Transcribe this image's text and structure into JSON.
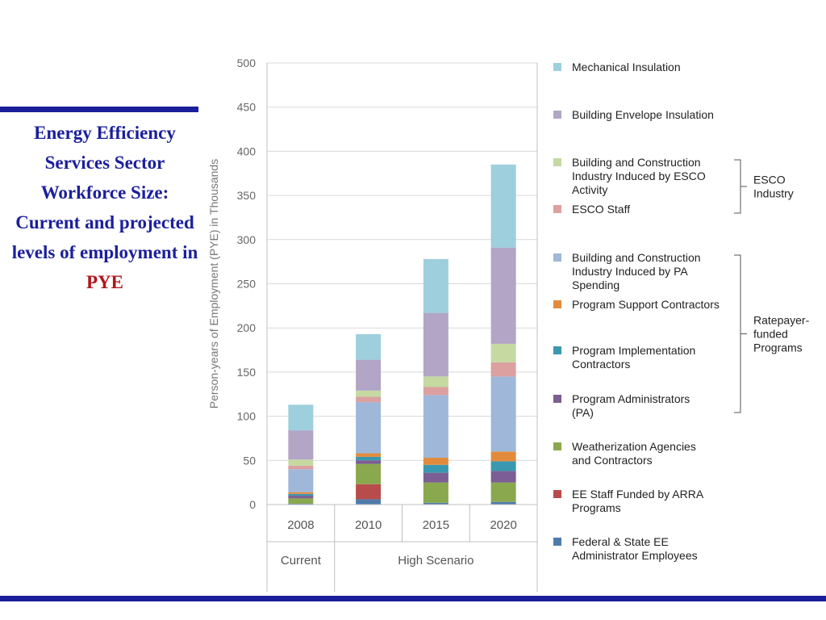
{
  "slide": {
    "title_main": "Energy Efficiency Services Sector Workforce Size: Current and projected levels of employment in",
    "title_accent": "PYE"
  },
  "colors": {
    "brand_blue": "#1b1f9a",
    "accent_red": "#b3141c"
  },
  "chart_data": {
    "type": "bar",
    "stacked": true,
    "ylabel": "Person-years of Employment (PYE) in Thousands",
    "ylim": [
      0,
      500
    ],
    "yticks": [
      0,
      50,
      100,
      150,
      200,
      250,
      300,
      350,
      400,
      450,
      500
    ],
    "grid": true,
    "legend_position": "right",
    "categories": [
      "2008",
      "2010",
      "2015",
      "2020"
    ],
    "category_groups": [
      {
        "label": "Current",
        "categories": [
          "2008"
        ]
      },
      {
        "label": "High Scenario",
        "categories": [
          "2010",
          "2015",
          "2020"
        ]
      }
    ],
    "series": [
      {
        "name": "Federal & State EE Administrator Employees",
        "color": "#4e7bac",
        "values": [
          1,
          6,
          2,
          3
        ]
      },
      {
        "name": "EE Staff Funded by ARRA Programs",
        "color": "#b84c4a",
        "values": [
          0,
          17,
          0,
          0
        ]
      },
      {
        "name": "Weatherization Agencies and Contractors",
        "color": "#8aa84e",
        "values": [
          6,
          23,
          23,
          22
        ]
      },
      {
        "name": "Program Administrators (PA)",
        "color": "#7b5e93",
        "values": [
          3,
          4,
          11,
          13
        ]
      },
      {
        "name": "Program Implementation Contractors",
        "color": "#3a98b0",
        "values": [
          2,
          4,
          9,
          11
        ]
      },
      {
        "name": "Program Support Contractors",
        "color": "#e38b3d",
        "values": [
          2,
          4,
          8,
          11
        ]
      },
      {
        "name": "Building and Construction Industry Induced by PA Spending",
        "color": "#9fb7d9",
        "values": [
          26,
          58,
          71,
          85
        ]
      },
      {
        "name": "ESCO Staff",
        "color": "#dba09f",
        "values": [
          4,
          6,
          9,
          16
        ]
      },
      {
        "name": "Building and Construction Industry Induced by ESCO Activity",
        "color": "#c5d9a1",
        "values": [
          7,
          7,
          12,
          21
        ]
      },
      {
        "name": "Building Envelope Insulation",
        "color": "#b2a5c6",
        "values": [
          33,
          35,
          72,
          109
        ]
      },
      {
        "name": "Mechanical Insulation",
        "color": "#9dcfdc",
        "values": [
          29,
          29,
          61,
          94
        ]
      }
    ],
    "legend_brackets": [
      {
        "label": "ESCO Industry",
        "series": [
          "Building and Construction Industry Induced by ESCO Activity",
          "ESCO Staff"
        ]
      },
      {
        "label": "Ratepayer-funded Programs",
        "series": [
          "Building and Construction Industry Induced by PA Spending",
          "Program Support Contractors",
          "Program Implementation Contractors",
          "Program Administrators (PA)"
        ]
      }
    ]
  }
}
